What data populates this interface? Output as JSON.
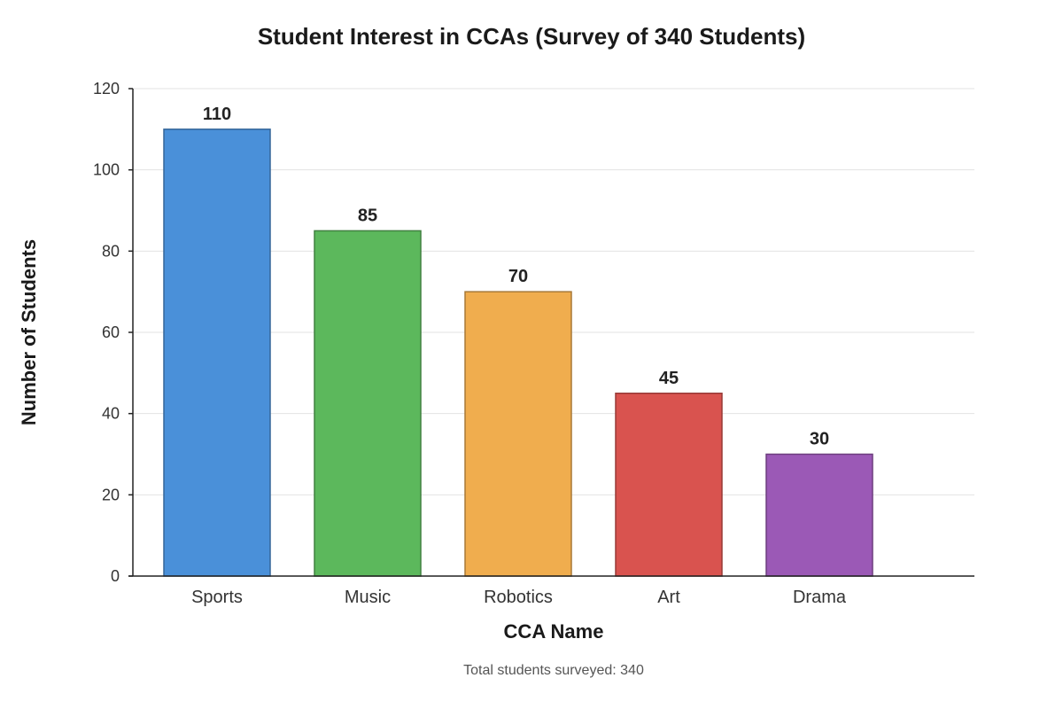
{
  "chart_data": {
    "type": "bar",
    "title": "Student Interest in CCAs (Survey of 340 Students)",
    "xlabel": "CCA Name",
    "ylabel": "Number of Students",
    "categories": [
      "Sports",
      "Music",
      "Robotics",
      "Art",
      "Drama"
    ],
    "values": [
      110,
      85,
      70,
      45,
      30
    ],
    "colors": [
      "#4a90d9",
      "#5cb85c",
      "#f0ad4e",
      "#d9534f",
      "#9b59b6"
    ],
    "ylim": [
      0,
      120
    ],
    "yticks": [
      0,
      20,
      40,
      60,
      80,
      100,
      120
    ],
    "grid": true,
    "legend": "none",
    "footnote": "Total students surveyed: 340"
  }
}
